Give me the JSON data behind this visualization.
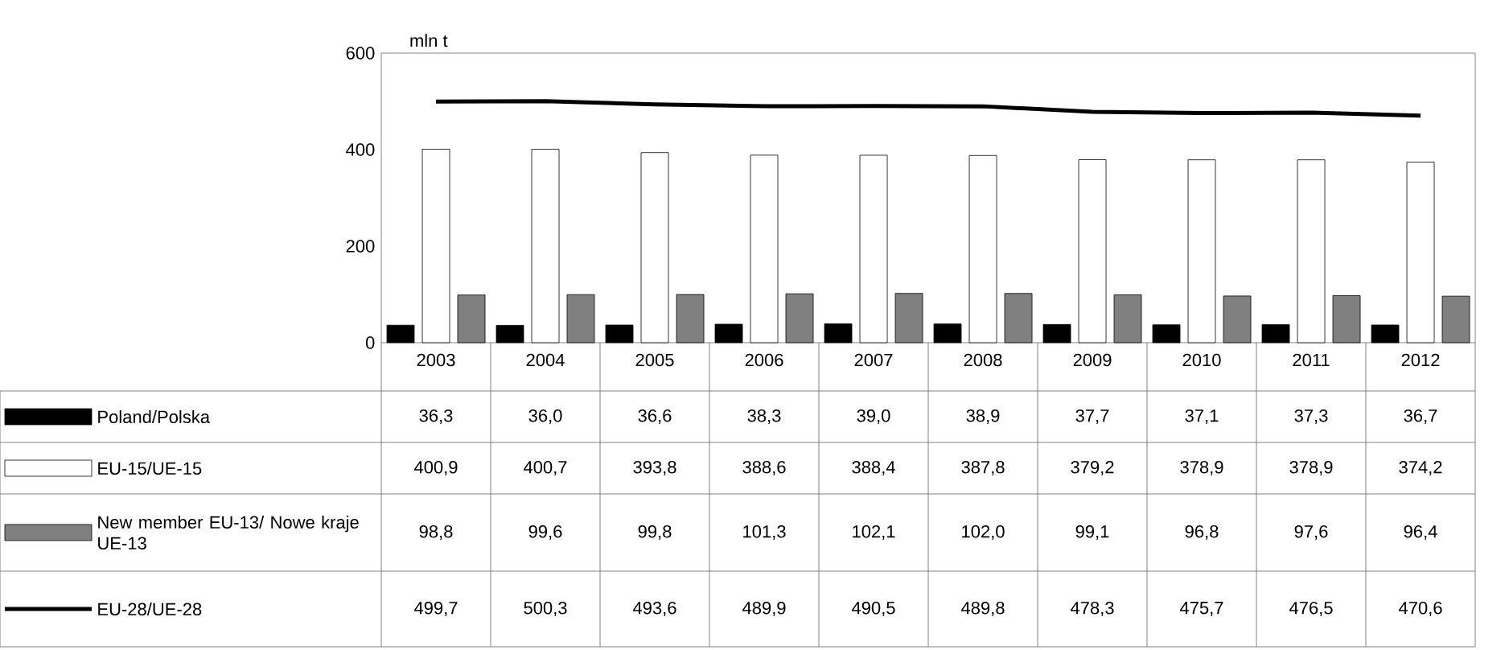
{
  "chart_data": {
    "type": "bar",
    "ylabel": "mln t",
    "ylim": [
      0,
      600
    ],
    "yticks": [
      0,
      200,
      400,
      600
    ],
    "legend": "bottom left",
    "data_labels": true,
    "categories": [
      "2003",
      "2004",
      "2005",
      "2006",
      "2007",
      "2008",
      "2009",
      "2010",
      "2011",
      "2012"
    ],
    "series": [
      {
        "name": "Poland/Polska",
        "color": "#000000",
        "values": [
          36.3,
          36.0,
          36.6,
          38.3,
          39.0,
          38.9,
          37.7,
          37.1,
          37.3,
          36.7
        ],
        "value_labels": [
          "36,3",
          "36,0",
          "36,6",
          "38,3",
          "39,0",
          "38,9",
          "37,7",
          "37,1",
          "37,3",
          "36,7"
        ]
      },
      {
        "name": "EU-15/UE-15",
        "color": "#ffffff",
        "values": [
          400.9,
          400.7,
          393.8,
          388.6,
          388.4,
          387.8,
          379.2,
          378.9,
          378.9,
          374.2
        ],
        "value_labels": [
          "400,9",
          "400,7",
          "393,8",
          "388,6",
          "388,4",
          "387,8",
          "379,2",
          "378,9",
          "378,9",
          "374,2"
        ]
      },
      {
        "name": "New member EU-13/ Nowe kraje UE-13",
        "color": "#808080",
        "values": [
          98.8,
          99.6,
          99.8,
          101.3,
          102.1,
          102.0,
          99.1,
          96.8,
          97.6,
          96.4
        ],
        "value_labels": [
          "98,8",
          "99,6",
          "99,8",
          "101,3",
          "102,1",
          "102,0",
          "99,1",
          "96,8",
          "97,6",
          "96,4"
        ]
      },
      {
        "name": "EU-28/UE-28",
        "type": "line",
        "color": "#000000",
        "values": [
          499.7,
          500.3,
          493.6,
          489.9,
          490.5,
          489.8,
          478.3,
          475.7,
          476.5,
          470.6
        ],
        "value_labels": [
          "499,7",
          "500,3",
          "493,6",
          "489,9",
          "490,5",
          "489,8",
          "478,3",
          "475,7",
          "476,5",
          "470,6"
        ]
      }
    ]
  }
}
